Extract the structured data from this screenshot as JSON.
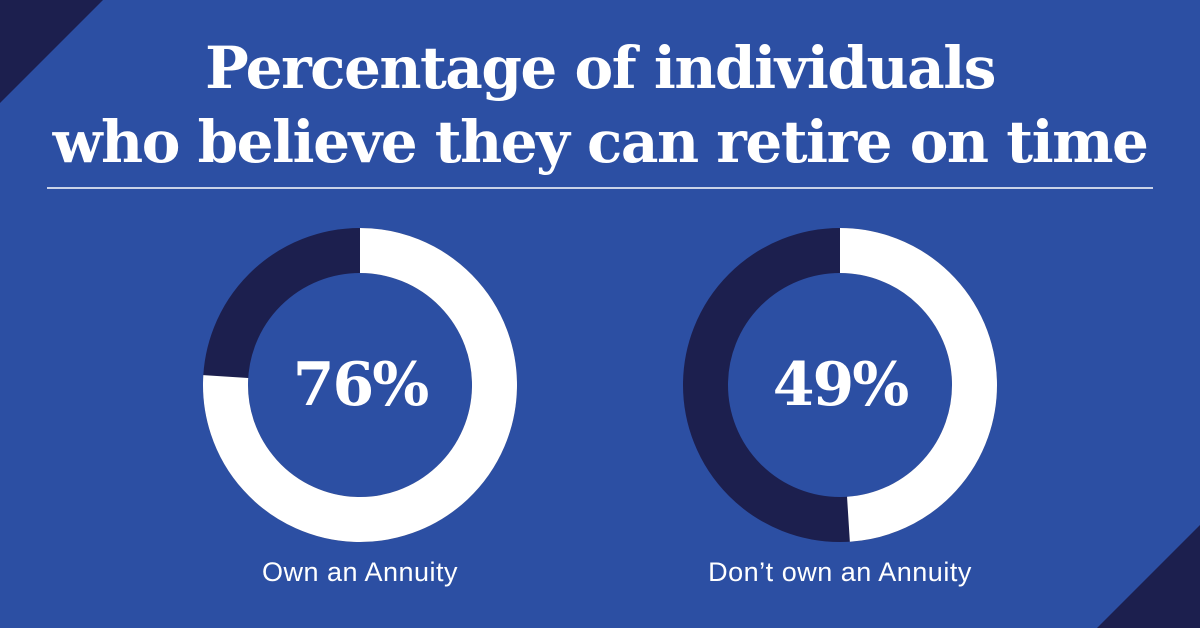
{
  "title": [
    "Percentage of individuals",
    "who believe they can retire on time"
  ],
  "chart_data": [
    {
      "type": "donut",
      "label": "Own an Annuity",
      "value": 76,
      "value_label": "76%",
      "ylim": [
        0,
        100
      ],
      "color": "#ffffff",
      "track_color": "#1c1f4e"
    },
    {
      "type": "donut",
      "label": "Don’t own an Annuity",
      "value": 49,
      "value_label": "49%",
      "ylim": [
        0,
        100
      ],
      "color": "#ffffff",
      "track_color": "#1c1f4e"
    }
  ]
}
